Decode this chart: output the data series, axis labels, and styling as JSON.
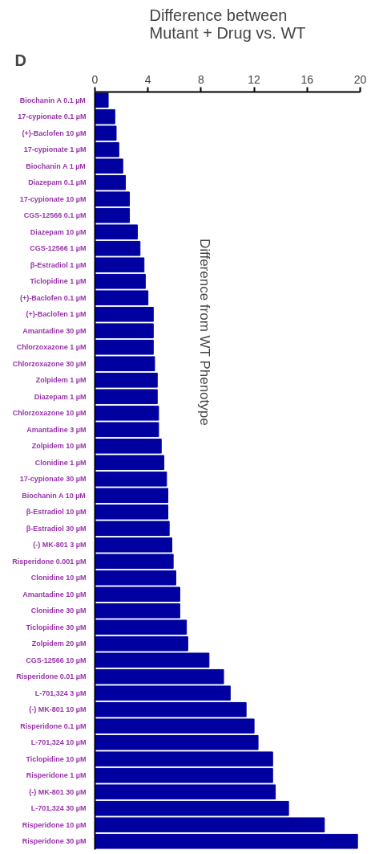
{
  "chart_data": {
    "type": "bar",
    "orientation": "horizontal",
    "title": "Difference between\nMutant + Drug vs. WT",
    "categories": [
      "Biochanin A 0.1 µM",
      "17-cypionate 0.1 µM",
      "(+)-Baclofen 10 µM",
      "17-cypionate 1 µM",
      "Biochanin A 1 µM",
      "Diazepam 0.1 µM",
      "17-cypionate 10 µM",
      "CGS-12566 0.1 µM",
      "Diazepam 10 µM",
      "CGS-12566 1 µM",
      "β-Estradiol 1 µM",
      "Ticlopidine 1 µM",
      "(+)-Baclofen 0.1 µM",
      "(+)-Baclofen 1 µM",
      "Amantadine 30 µM",
      "Chlorzoxazone 1 µM",
      "Chlorzoxazone 30 µM",
      "Zolpidem 1 µM",
      "Diazepam 1 µM",
      "Chlorzoxazone 10 µM",
      "Amantadine 3 µM",
      "Zolpidem 10 µM",
      "Clonidine 1 µM",
      "17-cypionate 30 µM",
      "Biochanin A 10 µM",
      "β-Estradiol 10 µM",
      "β-Estradiol 30 µM",
      "(-) MK-801 3 µM",
      "Risperidone 0.001 µM",
      "Clonidine 10 µM",
      "Amantadine 10 µM",
      "Clonidine 30 µM",
      "Ticlopidine 30 µM",
      "Zolpidem 20 µM",
      "CGS-12566 10 µM",
      "Risperidone 0.01 µM",
      "L-701,324 3 µM",
      "(-) MK-801 10 µM",
      "Risperidone 0.1 µM",
      "L-701,324 10 µM",
      "Ticlopidine 10 µM",
      "Risperidone 1 µM",
      "(-) MK-801 30 µM",
      "L-701,324 30 µM",
      "Risperidone 10 µM",
      "Risperidone 30 µM"
    ],
    "values": [
      1.0,
      1.5,
      1.6,
      1.8,
      2.1,
      2.3,
      2.6,
      2.6,
      3.2,
      3.4,
      3.7,
      3.8,
      4.0,
      4.4,
      4.4,
      4.4,
      4.5,
      4.7,
      4.7,
      4.8,
      4.8,
      5.0,
      5.2,
      5.4,
      5.5,
      5.5,
      5.6,
      5.8,
      5.9,
      6.1,
      6.4,
      6.4,
      6.9,
      7.0,
      8.6,
      9.7,
      10.2,
      11.4,
      12.0,
      12.3,
      13.4,
      13.4,
      13.6,
      14.6,
      17.3,
      19.8
    ],
    "color": "#0000a0",
    "xlim": [
      0,
      20
    ],
    "xticks": [
      0,
      4,
      8,
      12,
      16,
      20
    ],
    "grid": false,
    "annotations": [
      "D",
      "Difference from WT Phenotype"
    ]
  }
}
